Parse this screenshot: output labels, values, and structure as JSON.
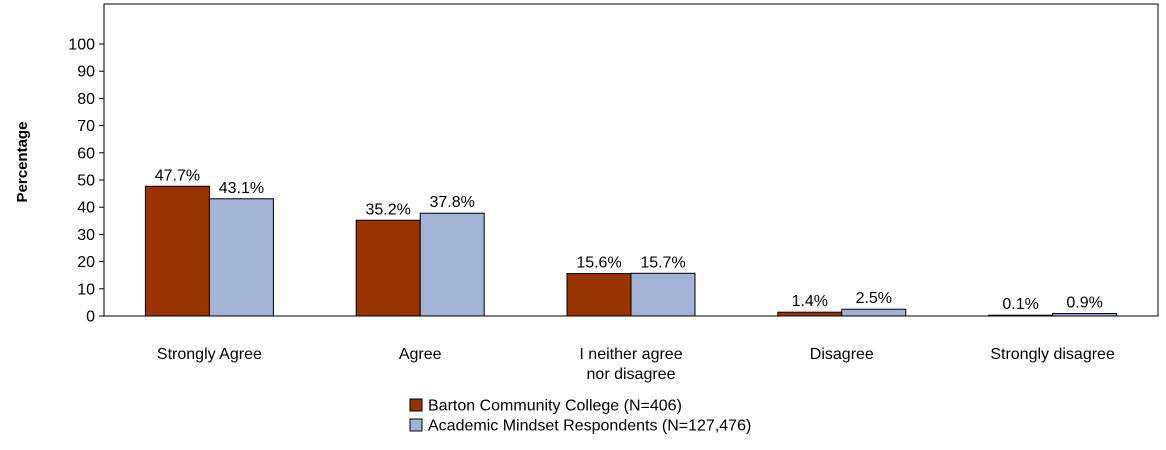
{
  "chart_data": {
    "type": "bar",
    "title": "",
    "xlabel": "",
    "ylabel": "Percentage",
    "ylim": [
      0,
      100
    ],
    "yticks": [
      0,
      10,
      20,
      30,
      40,
      50,
      60,
      70,
      80,
      90,
      100
    ],
    "categories": [
      "Strongly Agree",
      "Agree",
      "I neither agree nor disagree",
      "Disagree",
      "Strongly disagree"
    ],
    "category_lines": [
      [
        "Strongly Agree"
      ],
      [
        "Agree"
      ],
      [
        "I neither agree",
        "nor disagree"
      ],
      [
        "Disagree"
      ],
      [
        "Strongly disagree"
      ]
    ],
    "series": [
      {
        "name": "Barton Community College (N=406)",
        "color": "#993300",
        "values": [
          47.7,
          35.2,
          15.6,
          1.4,
          0.1
        ],
        "labels": [
          "47.7%",
          "35.2%",
          "15.6%",
          "1.4%",
          "0.1%"
        ]
      },
      {
        "name": "Academic Mindset Respondents (N=127,476)",
        "color": "#A3B3D6",
        "values": [
          43.1,
          37.8,
          15.7,
          2.5,
          0.9
        ],
        "labels": [
          "43.1%",
          "37.8%",
          "15.7%",
          "2.5%",
          "0.9%"
        ]
      }
    ],
    "grid": false,
    "legend_position": "bottom-center"
  }
}
